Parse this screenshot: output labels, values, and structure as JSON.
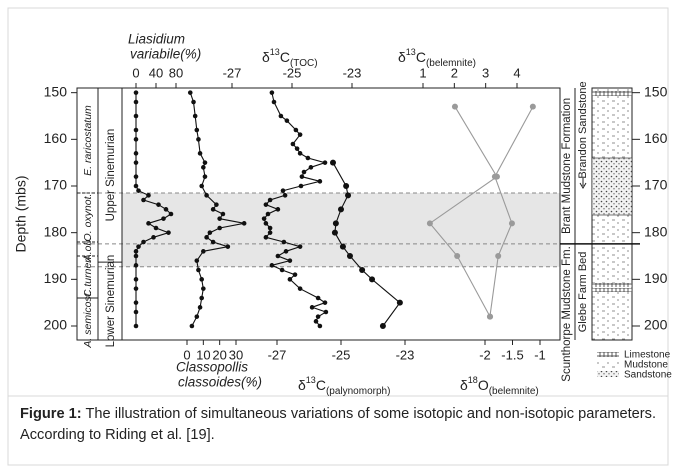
{
  "chart_data": {
    "type": "depth-profile",
    "ylabel": "Depth (mbs)",
    "ylim": [
      149,
      203
    ],
    "yticks": [
      150,
      160,
      170,
      180,
      190,
      200
    ],
    "highlight": [
      171.5,
      187.3
    ],
    "dashed_depths": [
      171.5,
      182.4,
      187.3
    ],
    "zones": [
      {
        "name": "E. raricostatum",
        "top": 149,
        "bottom": 171.5
      },
      {
        "name": "O. oxynot.",
        "top": 171.5,
        "bottom": 182
      },
      {
        "name": "A.ob.",
        "top": 182,
        "bottom": 185
      },
      {
        "name": "C.turneri",
        "top": 185,
        "bottom": 194
      },
      {
        "name": "A. semicost.",
        "top": 194,
        "bottom": 203
      }
    ],
    "stages": [
      {
        "name": "Upper Sinemurian",
        "top": 149,
        "bottom": 186.3
      },
      {
        "name": "Lower Sinemurian",
        "top": 186.3,
        "bottom": 203
      }
    ],
    "formations": [
      {
        "name": "Brant Mudstone Formation",
        "top": 149,
        "bottom": 182.4
      },
      {
        "name": "Scunthorpe Mudstone Fm.",
        "top": 182.4,
        "bottom": 203
      }
    ],
    "members": [
      {
        "name": "Brandon Sandstone",
        "top": 149,
        "bottom": 167
      },
      {
        "name": "Glebe Farm Bed",
        "top": 182.4,
        "bottom": 203
      }
    ],
    "lithology_legend": [
      "Limestone",
      "Mudstone",
      "Sandstone"
    ],
    "tracks": [
      {
        "label": {
          "lines": [
            "Liasidium",
            "variabile(%)"
          ]
        },
        "axis": "top",
        "color": "#111111",
        "xlim": [
          0,
          80
        ],
        "xticks": [
          0,
          40,
          80
        ],
        "depths": [
          150,
          152,
          155,
          158,
          160,
          163,
          165,
          168,
          170,
          171,
          172,
          173,
          174,
          175,
          176,
          177,
          178,
          179,
          180,
          181,
          182,
          183,
          184,
          185,
          187,
          190,
          192,
          195,
          197,
          200
        ],
        "values": [
          0,
          0,
          0,
          0,
          0,
          0,
          0,
          0,
          0,
          5,
          25,
          15,
          45,
          60,
          70,
          55,
          25,
          40,
          65,
          35,
          15,
          5,
          0,
          0,
          0,
          0,
          0,
          0,
          0,
          0
        ]
      },
      {
        "label": {
          "lines": [
            "Classopollis",
            "classoides(%)"
          ]
        },
        "axis": "bottom",
        "color": "#111111",
        "xlim": [
          0,
          30
        ],
        "xticks": [
          0,
          10,
          20,
          30
        ],
        "depths": [
          150,
          152,
          155,
          158,
          160,
          163,
          165,
          166,
          168,
          170,
          172,
          174,
          175,
          176,
          177,
          178,
          179,
          180,
          181,
          182,
          183,
          184,
          186,
          188,
          190,
          192,
          194,
          196,
          198,
          200
        ],
        "values": [
          2,
          4,
          5,
          6,
          7,
          8,
          11,
          10,
          11,
          9,
          12,
          18,
          16,
          22,
          20,
          35,
          20,
          14,
          12,
          16,
          25,
          10,
          6,
          7,
          9,
          10,
          9,
          8,
          6,
          3
        ]
      },
      {
        "label": {
          "symbol": "δ",
          "mass": "13",
          "element": "C",
          "qualifier": "(TOC)"
        },
        "axis": "top",
        "color": "#111111",
        "xlim": [
          -27,
          -23
        ],
        "xticks": [
          -27,
          -25,
          -23
        ],
        "depths": [
          150,
          152,
          155,
          156,
          158,
          159,
          161,
          162,
          163,
          164,
          165,
          166,
          167,
          168,
          169,
          170,
          171,
          172,
          173,
          174,
          175,
          176,
          177,
          178,
          179,
          180,
          181,
          182,
          183,
          184,
          185,
          186,
          187,
          188,
          189,
          190,
          192,
          194,
          195,
          196,
          197,
          198,
          199,
          200
        ],
        "values": [
          -25.67,
          -25.6,
          -25.37,
          -25.17,
          -24.87,
          -24.73,
          -24.97,
          -24.83,
          -24.73,
          -24.47,
          -23.9,
          -24.37,
          -24.6,
          -24.67,
          -24.07,
          -24.7,
          -25.3,
          -25.23,
          -25.73,
          -25.87,
          -25.47,
          -25.8,
          -25.93,
          -25.87,
          -25.73,
          -25.73,
          -25.87,
          -25.27,
          -24.73,
          -25.2,
          -25.47,
          -25.07,
          -25.67,
          -25.33,
          -24.9,
          -25.07,
          -24.73,
          -24.13,
          -23.9,
          -24.33,
          -23.87,
          -24.13,
          -24.2,
          -24.07
        ]
      },
      {
        "label": {
          "symbol": "δ",
          "mass": "13",
          "element": "C",
          "qualifier": "(palynomorph)"
        },
        "axis": "bottom",
        "color": "#111111",
        "xlim": [
          -27,
          -23
        ],
        "xticks": [
          -27,
          -25,
          -23
        ],
        "depths": [
          165,
          170,
          172,
          175,
          178,
          180,
          183,
          185,
          188,
          190,
          195,
          200
        ],
        "values": [
          -25.25,
          -24.84,
          -24.78,
          -25,
          -25.16,
          -25.19,
          -24.94,
          -24.72,
          -24.34,
          -24.03,
          -23.16,
          -23.69
        ]
      },
      {
        "label": {
          "symbol": "δ",
          "mass": "13",
          "element": "C",
          "qualifier": "(belemnite)"
        },
        "axis": "top",
        "color": "#9a9a9a",
        "xlim": [
          1,
          4
        ],
        "xticks": [
          1,
          2,
          3,
          4
        ],
        "depths": [
          153,
          168,
          178,
          185,
          198
        ],
        "values": [
          2.02,
          3.36,
          1.22,
          2.09,
          3.14
        ]
      },
      {
        "label": {
          "symbol": "δ",
          "mass": "18",
          "element": "O",
          "qualifier": "(belemnite)"
        },
        "axis": "bottom",
        "color": "#9a9a9a",
        "xlim": [
          -2,
          -1
        ],
        "xticks": [
          -2,
          -1.5,
          -1
        ],
        "depths": [
          153,
          168,
          178,
          185,
          198
        ],
        "values": [
          -1.13,
          -1.82,
          -1.51,
          -1.76,
          -1.91
        ]
      }
    ]
  },
  "caption": {
    "label": "Figure 1:",
    "text": "The illustration of simultaneous variations of some isotopic and non-isotopic parameters. According to Riding et al. [19]."
  }
}
